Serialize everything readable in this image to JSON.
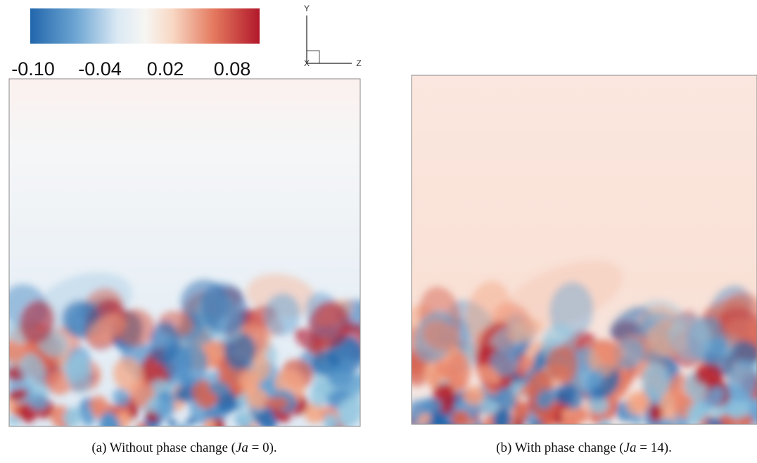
{
  "colorbar": {
    "ticks": [
      "-0.10",
      "-0.04",
      "0.02",
      "0.08"
    ]
  },
  "axes": {
    "y": "Y",
    "x": "X",
    "z": "Z"
  },
  "panels": [
    {
      "caption": [
        "(a) Without phase change (",
        "Ja",
        " = 0)."
      ]
    },
    {
      "caption": [
        "(b) With phase change (",
        "Ja",
        " = 14)."
      ]
    }
  ]
}
